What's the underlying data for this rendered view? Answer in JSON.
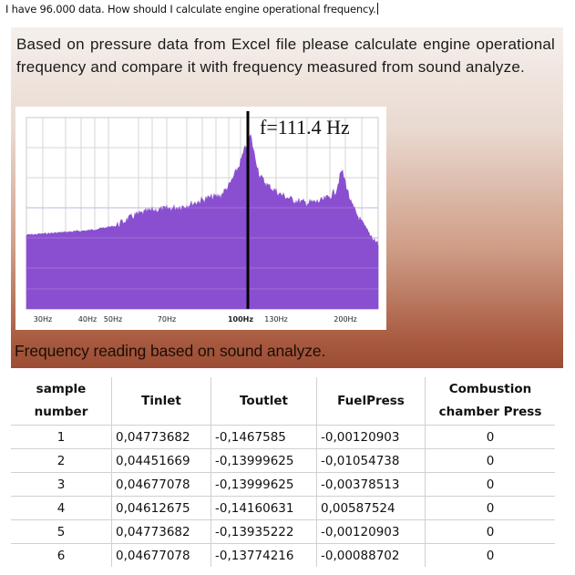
{
  "question": "I have 96.000 data. How should I calculate engine operational frequency.",
  "slide": {
    "text": "Based on pressure data from Excel file please calculate engine operational frequency and compare it with frequency measured from sound analyze.",
    "caption": "Frequency reading based on sound analyze.",
    "spectrum": {
      "freq_label": "f=111.4 Hz",
      "fill_color": "#8a4fd0",
      "marker_color": "#000000",
      "ticks": [
        "30Hz",
        "40Hz",
        "50Hz",
        "70Hz",
        "100Hz",
        "130Hz",
        "200Hz"
      ],
      "marked_frequency_hz": 111.4
    }
  },
  "table": {
    "headers": [
      "sample number",
      "Tinlet",
      "Toutlet",
      "FuelPress",
      "Combustion chamber Press"
    ],
    "rows": [
      [
        "1",
        "0,04773682",
        "-0,1467585",
        "-0,00120903",
        "0"
      ],
      [
        "2",
        "0,04451669",
        "-0,13999625",
        "-0,01054738",
        "0"
      ],
      [
        "3",
        "0,04677078",
        "-0,13999625",
        "-0,00378513",
        "0"
      ],
      [
        "4",
        "0,04612675",
        "-0,14160631",
        "0,00587524",
        "0"
      ],
      [
        "5",
        "0,04773682",
        "-0,13935222",
        "-0,00120903",
        "0"
      ],
      [
        "6",
        "0,04677078",
        "-0,13774216",
        "-0,00088702",
        "0"
      ]
    ]
  }
}
